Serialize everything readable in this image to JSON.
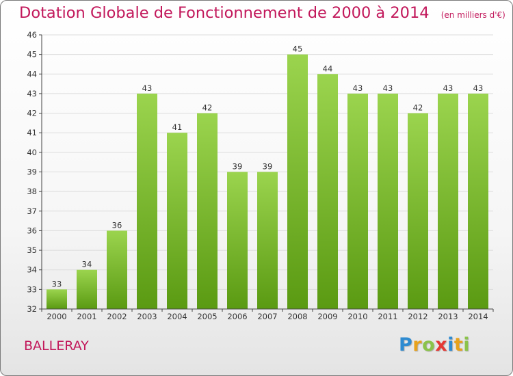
{
  "header": {
    "title": "Dotation Globale de Fonctionnement de 2000 à 2014",
    "subtitle": "(en milliers d'€)"
  },
  "commune": "BALLERAY",
  "brand": {
    "letters": [
      {
        "ch": "P",
        "color": "#2e8bd1"
      },
      {
        "ch": "r",
        "color": "#e8a21c"
      },
      {
        "ch": "o",
        "color": "#8bc34a"
      },
      {
        "ch": "x",
        "color": "#e53935"
      },
      {
        "ch": "i",
        "color": "#2e8bd1"
      },
      {
        "ch": "t",
        "color": "#e8a21c"
      },
      {
        "ch": "i",
        "color": "#8bc34a"
      }
    ]
  },
  "colors": {
    "title": "#c2185b",
    "bar_top": "#9bd44e",
    "bar_bottom": "#5a9a12",
    "grid": "#dcdcdc",
    "axis": "#444444"
  },
  "chart_data": {
    "type": "bar",
    "categories": [
      "2000",
      "2001",
      "2002",
      "2003",
      "2004",
      "2005",
      "2006",
      "2007",
      "2008",
      "2009",
      "2010",
      "2011",
      "2012",
      "2013",
      "2014"
    ],
    "values": [
      33,
      34,
      36,
      43,
      41,
      42,
      39,
      39,
      45,
      44,
      43,
      43,
      42,
      43,
      43
    ],
    "ylim": [
      32,
      46
    ],
    "yticks": [
      32,
      33,
      34,
      35,
      36,
      37,
      38,
      39,
      40,
      41,
      42,
      43,
      44,
      45,
      46
    ],
    "grid": true,
    "legend": "none"
  }
}
